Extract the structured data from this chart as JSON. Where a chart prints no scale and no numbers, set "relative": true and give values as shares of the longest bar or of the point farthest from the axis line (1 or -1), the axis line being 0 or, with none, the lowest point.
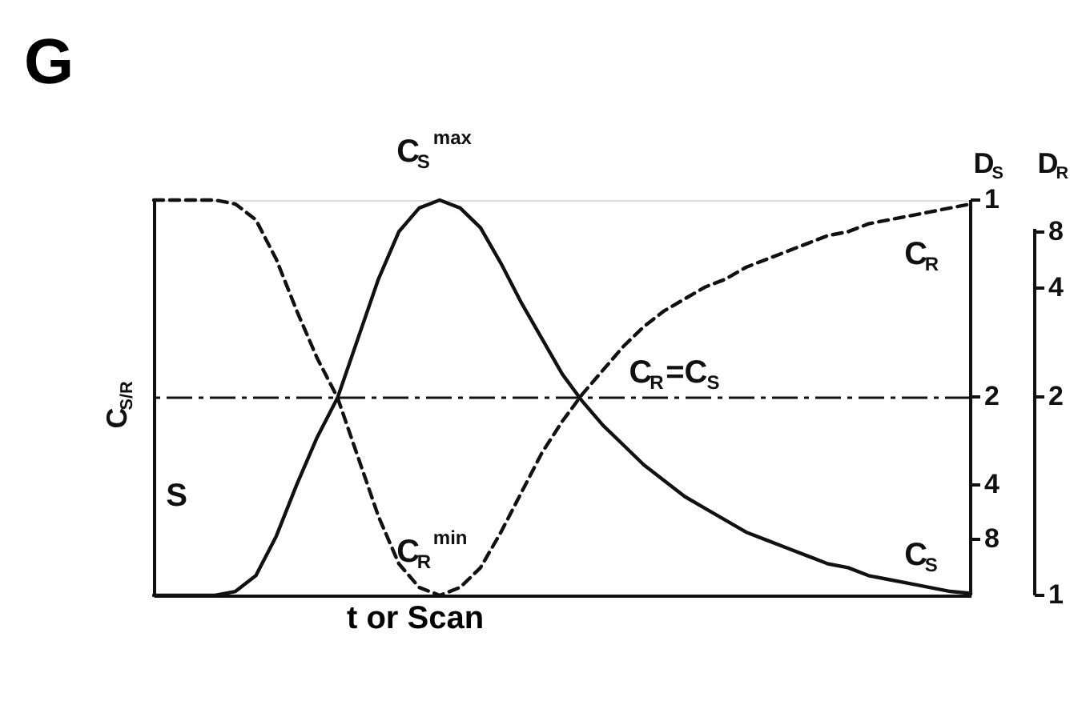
{
  "chart_data": {
    "type": "line",
    "title": "G",
    "xlabel": "t or Scan",
    "ylabel": "C$_{S/R}$",
    "y2label": "D$_{S}$",
    "y3label": "D$_{R}$",
    "relative": true,
    "categories": [
      null,
      null,
      null,
      null,
      null,
      null,
      null,
      null,
      null,
      null,
      null,
      null,
      null,
      null,
      null,
      null,
      null,
      null,
      null,
      null,
      null,
      null,
      null,
      null,
      null,
      null,
      null,
      null,
      null,
      null,
      null,
      null,
      null,
      null,
      null,
      null,
      null,
      null,
      null,
      null,
      null
    ],
    "series": [
      {
        "color": "#111111",
        "line_style": "solid",
        "values": [
          0,
          0,
          0,
          0,
          0.01,
          0.05,
          0.15,
          0.28,
          0.4,
          0.5,
          0.65,
          0.8,
          0.92,
          0.98,
          1,
          0.98,
          0.93,
          0.84,
          0.74,
          0.65,
          0.56,
          0.49,
          0.43,
          0.38,
          0.33,
          0.29,
          0.25,
          0.22,
          0.19,
          0.16,
          0.14,
          0.12,
          0.1,
          0.08,
          0.07,
          0.05,
          0.04,
          0.03,
          0.02,
          0.01,
          0.005
        ]
      },
      {
        "color": "#111111",
        "line_style": "dashed",
        "values": [
          1,
          1,
          1,
          1,
          0.99,
          0.95,
          0.85,
          0.72,
          0.6,
          0.5,
          0.35,
          0.2,
          0.08,
          0.02,
          0,
          0.02,
          0.07,
          0.16,
          0.26,
          0.36,
          0.44,
          0.51,
          0.57,
          0.63,
          0.68,
          0.72,
          0.75,
          0.78,
          0.8,
          0.83,
          0.85,
          0.87,
          0.89,
          0.91,
          0.92,
          0.94,
          0.95,
          0.96,
          0.97,
          0.98,
          0.99
        ]
      }
    ],
    "ref_lines": [
      {
        "axis": "y",
        "value": 0.5,
        "color": "#111111",
        "line_style": "dashed"
      }
    ],
    "annotations": [
      "C$_{S}$$^{max}$",
      "C$_{R}$$^{min}$",
      "C$_{R}$=C$_{S}$",
      "C$_{R}$",
      "C$_{S}$",
      "S",
      "1",
      "2",
      "4",
      "8",
      "8",
      "4",
      "2",
      "1"
    ],
    "grid": false
  }
}
